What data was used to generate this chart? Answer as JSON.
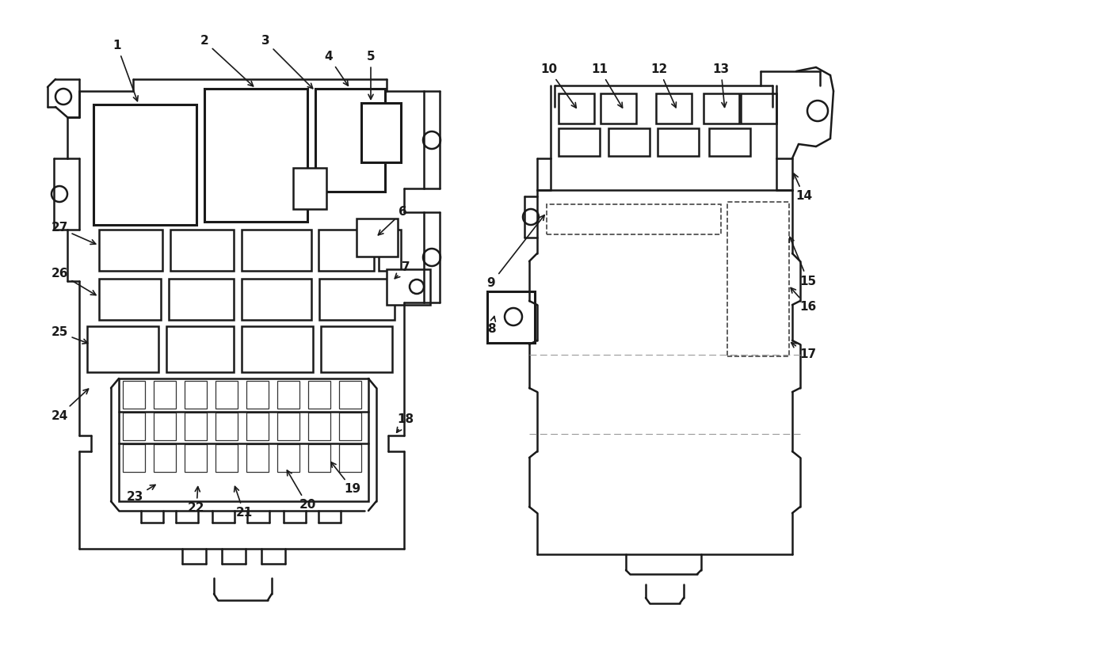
{
  "bg_color": "#ffffff",
  "lc": "#1a1a1a",
  "lw": 1.8,
  "tlw": 2.2,
  "fs": 11
}
